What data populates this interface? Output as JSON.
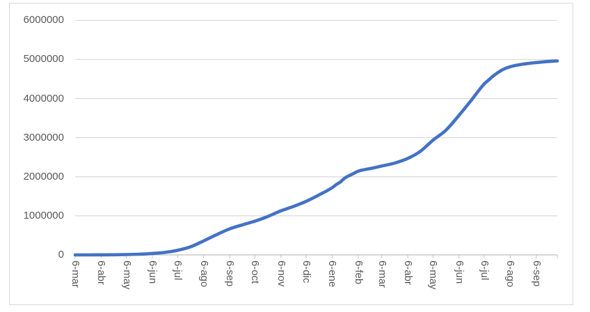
{
  "chart_data": {
    "type": "line",
    "title": "",
    "legend": "none",
    "grid": true,
    "categories": [
      "6-mar",
      "6-abr",
      "6-may",
      "6-jun",
      "6-jul",
      "6-ago",
      "6-sep",
      "6-oct",
      "6-nov",
      "6-dic",
      "6-ene",
      "6-feb",
      "6-mar",
      "6-abr",
      "6-may",
      "6-jun",
      "6-jul",
      "6-ago",
      "6-sep"
    ],
    "category_days": [
      0,
      31,
      61,
      92,
      122,
      153,
      184,
      214,
      245,
      275,
      306,
      337,
      365,
      396,
      426,
      457,
      487,
      518,
      549
    ],
    "values": [
      1,
      1579,
      8959,
      36635,
      117110,
      357710,
      666521,
      862158,
      1127733,
      1371103,
      1719771,
      2142660,
      2273245,
      2468236,
      2934611,
      3571067,
      4375861,
      4815063,
      4921410
    ],
    "curve_points": [
      {
        "day": 0,
        "value": 1
      },
      {
        "day": 15,
        "value": 45
      },
      {
        "day": 31,
        "value": 1579
      },
      {
        "day": 46,
        "value": 3977
      },
      {
        "day": 61,
        "value": 8959
      },
      {
        "day": 76,
        "value": 16935
      },
      {
        "day": 92,
        "value": 36635
      },
      {
        "day": 107,
        "value": 63276
      },
      {
        "day": 122,
        "value": 117110
      },
      {
        "day": 137,
        "value": 204005
      },
      {
        "day": 153,
        "value": 357710
      },
      {
        "day": 168,
        "value": 513719
      },
      {
        "day": 184,
        "value": 666521
      },
      {
        "day": 199,
        "value": 768435
      },
      {
        "day": 214,
        "value": 862158
      },
      {
        "day": 229,
        "value": 980000
      },
      {
        "day": 245,
        "value": 1127733
      },
      {
        "day": 260,
        "value": 1240493
      },
      {
        "day": 275,
        "value": 1371103
      },
      {
        "day": 290,
        "value": 1530593
      },
      {
        "day": 306,
        "value": 1719771
      },
      {
        "day": 311,
        "value": 1801000
      },
      {
        "day": 316,
        "value": 1870179
      },
      {
        "day": 321,
        "value": 1966000
      },
      {
        "day": 326,
        "value": 2025000
      },
      {
        "day": 331,
        "value": 2077000
      },
      {
        "day": 337,
        "value": 2142660
      },
      {
        "day": 352,
        "value": 2212000
      },
      {
        "day": 365,
        "value": 2273245
      },
      {
        "day": 380,
        "value": 2347000
      },
      {
        "day": 396,
        "value": 2468236
      },
      {
        "day": 411,
        "value": 2650000
      },
      {
        "day": 426,
        "value": 2934611
      },
      {
        "day": 441,
        "value": 3183000
      },
      {
        "day": 457,
        "value": 3571067
      },
      {
        "day": 472,
        "value": 3968000
      },
      {
        "day": 487,
        "value": 4375861
      },
      {
        "day": 492,
        "value": 4470000
      },
      {
        "day": 497,
        "value": 4565000
      },
      {
        "day": 502,
        "value": 4645000
      },
      {
        "day": 507,
        "value": 4716000
      },
      {
        "day": 512,
        "value": 4770000
      },
      {
        "day": 518,
        "value": 4815063
      },
      {
        "day": 533,
        "value": 4881000
      },
      {
        "day": 549,
        "value": 4921410
      },
      {
        "day": 561,
        "value": 4946000
      },
      {
        "day": 574,
        "value": 4963243
      }
    ],
    "x_span_days": 574,
    "ylim": [
      0,
      6000000
    ],
    "y_tick_step": 1000000,
    "y_tick_labels": [
      "0",
      "1000000",
      "2000000",
      "3000000",
      "4000000",
      "5000000",
      "6000000"
    ],
    "colors": {
      "line": "#4472C4",
      "gridline": "#D9D9D9",
      "axis_line": "#BFBFBF",
      "tick_mark": "#BFBFBF",
      "label_text": "#595959",
      "chart_border": "#D9D9D9",
      "background": "#FFFFFF"
    }
  }
}
